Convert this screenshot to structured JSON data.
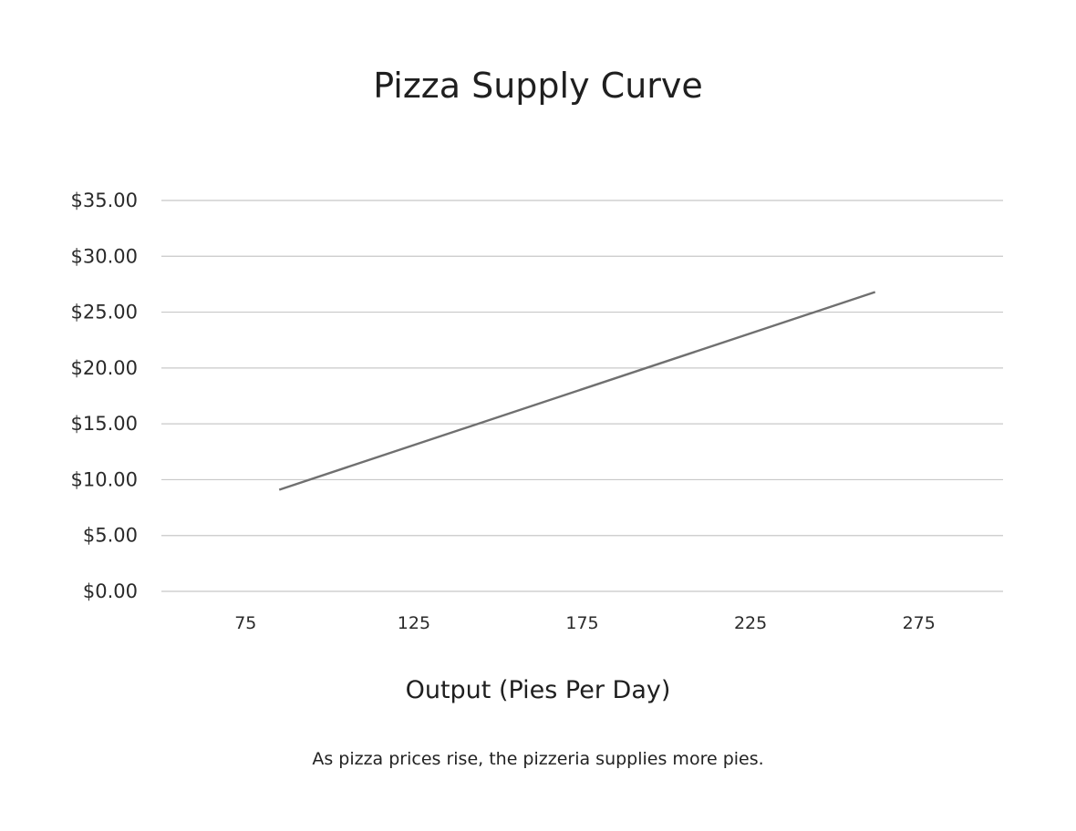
{
  "chart_data": {
    "type": "line",
    "title": "Pizza Supply Curve",
    "xlabel": "Output (Pies Per Day)",
    "ylabel": "",
    "caption": "As pizza prices rise, the pizzeria supplies more pies.",
    "x_ticks": [
      "75",
      "125",
      "175",
      "225",
      "275"
    ],
    "y_ticks": [
      "$0.00",
      "$5.00",
      "$10.00",
      "$15.00",
      "$20.00",
      "$25.00",
      "$30.00",
      "$35.00"
    ],
    "xlim": [
      50,
      300
    ],
    "ylim": [
      0,
      35
    ],
    "grid": "horizontal",
    "colors": {
      "line": "#707070",
      "grid": "#c8c8c8"
    },
    "series": [
      {
        "x": [
          85,
          262
        ],
        "y": [
          9.1,
          26.8
        ]
      }
    ]
  }
}
